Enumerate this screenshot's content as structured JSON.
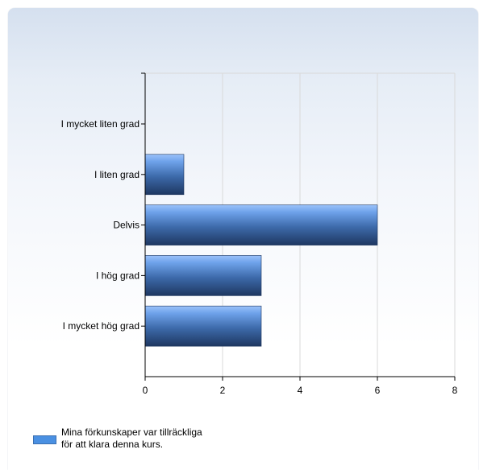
{
  "chart_data": {
    "type": "bar",
    "orientation": "horizontal",
    "categories": [
      "I mycket liten grad",
      "I liten grad",
      "Delvis",
      "I hög grad",
      "I mycket hög grad"
    ],
    "series": [
      {
        "name": "Mina förkunskaper var tillräckliga för att klara denna kurs.",
        "values": [
          0,
          1,
          6,
          3,
          3
        ]
      }
    ],
    "xticks": [
      0,
      2,
      4,
      6,
      8
    ],
    "xlim": [
      0,
      8
    ],
    "title": "",
    "xlabel": "",
    "ylabel": "",
    "grid": "vertical",
    "legend_position": "bottom-left",
    "colors": {
      "bar_top": "#8fb8f5",
      "bar_mid": "#5b8ed6",
      "bar_bottom": "#1f3a63",
      "grid": "#d9d9d9",
      "axis": "#000000",
      "legend_swatch": "#4a90e2"
    }
  },
  "legend": {
    "label_line1": "Mina förkunskaper var tillräckliga",
    "label_line2": "för att klara denna kurs."
  }
}
